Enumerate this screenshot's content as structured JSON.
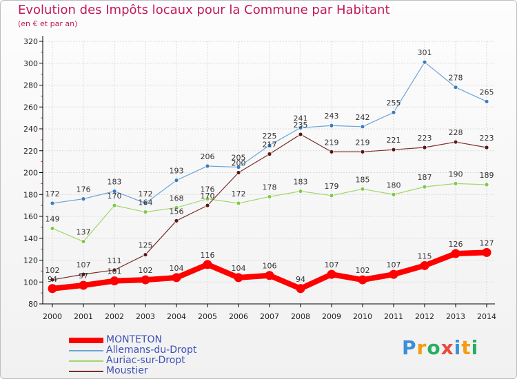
{
  "title": "Evolution des Impôts locaux pour la Commune par Habitant",
  "subtitle": "(en € et par an)",
  "colors": {
    "title": "#c2185b",
    "legend_text": "#3f51b5",
    "axis": "#000000",
    "grid": "#d9d9d9"
  },
  "logo": {
    "text": "Proxiti",
    "letters": [
      "P",
      "r",
      "o",
      "x",
      "i",
      "t",
      "i"
    ],
    "letter_colors": [
      "#3b8fd9",
      "#f39c12",
      "#27ae60",
      "#e74c3c",
      "#3b8fd9",
      "#f39c12",
      "#27ae60"
    ]
  },
  "chart_data": {
    "type": "line",
    "title": "Evolution des Impôts locaux pour la Commune par Habitant",
    "subtitle": "(en € et par an)",
    "x": [
      "2000",
      "2001",
      "2002",
      "2003",
      "2004",
      "2005",
      "2006",
      "2007",
      "2008",
      "2009",
      "2010",
      "2011",
      "2012",
      "2013",
      "2014"
    ],
    "ylim": [
      80,
      320
    ],
    "yticks": [
      80,
      100,
      120,
      140,
      160,
      180,
      200,
      220,
      240,
      260,
      280,
      300,
      320
    ],
    "grid": true,
    "legend_position": "bottom-left",
    "series": [
      {
        "name": "MONTETON",
        "color": "#ff0000",
        "marker": "#ff0000",
        "line_width": 8,
        "values": [
          94,
          97,
          101,
          102,
          104,
          116,
          104,
          106,
          94,
          107,
          102,
          107,
          115,
          126,
          127
        ],
        "labels": [
          "94",
          "97",
          "101",
          "102",
          "104",
          "116",
          "104",
          "106",
          "94",
          "107",
          "102",
          "107",
          "115",
          "126",
          "127"
        ]
      },
      {
        "name": "Allemans-du-Dropt",
        "color": "#6aa4d8",
        "marker": "#3a7cc0",
        "line_width": 1.2,
        "values": [
          172,
          176,
          183,
          172,
          193,
          206,
          205,
          225,
          241,
          243,
          242,
          255,
          301,
          278,
          265
        ],
        "labels": [
          "172",
          "176",
          "183",
          "172",
          "193",
          "206",
          "205",
          "225",
          "241",
          "243",
          "242",
          "255",
          "301",
          "278",
          "265"
        ]
      },
      {
        "name": "Auriac-sur-Dropt",
        "color": "#9ed86a",
        "marker": "#7ec850",
        "line_width": 1.2,
        "values": [
          149,
          137,
          170,
          164,
          168,
          176,
          172,
          178,
          183,
          179,
          185,
          180,
          187,
          190,
          189
        ],
        "labels": [
          "149",
          "137",
          "170",
          "164",
          "168",
          "176",
          "172",
          "178",
          "183",
          "179",
          "185",
          "180",
          "187",
          "190",
          "189"
        ]
      },
      {
        "name": "Moustier",
        "color": "#7a2e2e",
        "marker": "#5a1717",
        "line_width": 1.2,
        "values": [
          102,
          107,
          111,
          125,
          156,
          170,
          200,
          217,
          235,
          219,
          219,
          221,
          223,
          228,
          223
        ],
        "labels": [
          "102",
          "107",
          "111",
          "125",
          "156",
          "170",
          "200",
          "217",
          "235",
          "219",
          "219",
          "221",
          "223",
          "228",
          "223"
        ]
      }
    ]
  }
}
